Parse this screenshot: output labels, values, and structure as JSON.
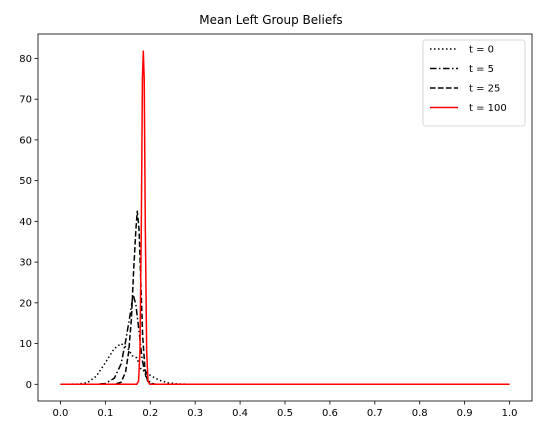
{
  "chart_data": {
    "type": "line",
    "title": "Mean Left Group Beliefs",
    "xlabel": "",
    "ylabel": "",
    "xlim": [
      -0.05,
      1.05
    ],
    "ylim": [
      -4.1,
      86
    ],
    "x_ticks": [
      "0.0",
      "0.1",
      "0.2",
      "0.3",
      "0.4",
      "0.5",
      "0.6",
      "0.7",
      "0.8",
      "0.9",
      "1.0"
    ],
    "y_ticks": [
      "0",
      "10",
      "20",
      "30",
      "40",
      "50",
      "60",
      "70",
      "80"
    ],
    "legend_position": "top-right",
    "grid": false,
    "series": [
      {
        "name": "t = 0",
        "style": "dotted",
        "color": "#000000",
        "points": [
          [
            0.0,
            0
          ],
          [
            0.04,
            0.05
          ],
          [
            0.06,
            0.4
          ],
          [
            0.08,
            2.0
          ],
          [
            0.1,
            5.3
          ],
          [
            0.12,
            8.8
          ],
          [
            0.135,
            10.0
          ],
          [
            0.15,
            8.8
          ],
          [
            0.16,
            7.0
          ],
          [
            0.17,
            6.5
          ],
          [
            0.175,
            5.0
          ],
          [
            0.18,
            3.5
          ],
          [
            0.19,
            3.2
          ],
          [
            0.2,
            2.2
          ],
          [
            0.22,
            1.0
          ],
          [
            0.24,
            0.35
          ],
          [
            0.26,
            0.1
          ],
          [
            0.28,
            0.02
          ],
          [
            0.3,
            0
          ],
          [
            1.0,
            0
          ]
        ]
      },
      {
        "name": "t = 5",
        "style": "dashdot",
        "color": "#000000",
        "points": [
          [
            0.0,
            0
          ],
          [
            0.08,
            0
          ],
          [
            0.1,
            0.2
          ],
          [
            0.12,
            1.5
          ],
          [
            0.135,
            5.0
          ],
          [
            0.145,
            10.5
          ],
          [
            0.155,
            17.0
          ],
          [
            0.162,
            22.0
          ],
          [
            0.168,
            19.5
          ],
          [
            0.175,
            13.0
          ],
          [
            0.182,
            6.0
          ],
          [
            0.19,
            2.0
          ],
          [
            0.2,
            0.4
          ],
          [
            0.21,
            0.05
          ],
          [
            0.22,
            0
          ],
          [
            1.0,
            0
          ]
        ]
      },
      {
        "name": "t = 25",
        "style": "dashed",
        "color": "#000000",
        "points": [
          [
            0.0,
            0
          ],
          [
            0.12,
            0
          ],
          [
            0.135,
            0.5
          ],
          [
            0.145,
            3.0
          ],
          [
            0.152,
            8.0
          ],
          [
            0.158,
            16.0
          ],
          [
            0.163,
            28.0
          ],
          [
            0.168,
            38.0
          ],
          [
            0.171,
            42.5
          ],
          [
            0.175,
            38.0
          ],
          [
            0.179,
            25.0
          ],
          [
            0.183,
            12.0
          ],
          [
            0.188,
            4.0
          ],
          [
            0.194,
            0.8
          ],
          [
            0.2,
            0.1
          ],
          [
            0.21,
            0
          ],
          [
            1.0,
            0
          ]
        ]
      },
      {
        "name": "t = 100",
        "style": "solid",
        "color": "#ff0000",
        "points": [
          [
            0.0,
            0
          ],
          [
            0.17,
            0
          ],
          [
            0.174,
            0.8
          ],
          [
            0.177,
            8.0
          ],
          [
            0.18,
            38.0
          ],
          [
            0.1825,
            75.0
          ],
          [
            0.1845,
            81.8
          ],
          [
            0.1865,
            75.0
          ],
          [
            0.189,
            38.0
          ],
          [
            0.192,
            8.0
          ],
          [
            0.195,
            0.8
          ],
          [
            0.199,
            0
          ],
          [
            1.0,
            0
          ]
        ]
      }
    ]
  }
}
